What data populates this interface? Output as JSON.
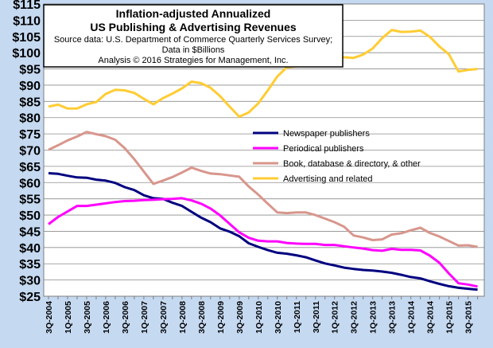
{
  "chart_data": {
    "type": "line",
    "title": "Inflation-adjusted Annualized",
    "title_line2": "US Publishing & Advertising Revenues",
    "subtitle_line1": "Source data: U.S. Department of Commerce Quarterly Services Survey;",
    "subtitle_line2": "Data in $Billions",
    "subtitle_line3": "Analysis © 2016 Strategies for Management, Inc.",
    "xlabel": "",
    "ylabel": "",
    "ylim": [
      25,
      115
    ],
    "ytick_step": 5,
    "y_tick_prefix": "$",
    "grid": true,
    "legend_position": "center-right",
    "plot_background": "#ffffff",
    "page_background": "#c5d9f1",
    "x": [
      "3Q-2004",
      "4Q-2004",
      "1Q-2005",
      "2Q-2005",
      "3Q-2005",
      "4Q-2005",
      "1Q-2006",
      "2Q-2006",
      "3Q-2006",
      "4Q-2006",
      "1Q-2007",
      "2Q-2007",
      "3Q-2007",
      "4Q-2007",
      "1Q-2008",
      "2Q-2008",
      "3Q-2008",
      "4Q-2008",
      "1Q-2009",
      "2Q-2009",
      "3Q-2009",
      "4Q-2009",
      "1Q-2010",
      "2Q-2010",
      "3Q-2010",
      "4Q-2010",
      "1Q-2011",
      "2Q-2011",
      "3Q-2011",
      "4Q-2011",
      "1Q-2012",
      "2Q-2012",
      "3Q-2012",
      "4Q-2012",
      "1Q-2013",
      "2Q-2013",
      "3Q-2013",
      "4Q-2013",
      "1Q-2014",
      "2Q-2014",
      "3Q-2014",
      "4Q-2014",
      "1Q-2015",
      "2Q-2015",
      "3Q-2015",
      "4Q-2015"
    ],
    "x_tick_labels": [
      "3Q-2004",
      "1Q-2005",
      "3Q-2005",
      "1Q-2006",
      "3Q-2006",
      "1Q-2007",
      "3Q-2007",
      "1Q-2008",
      "3Q-2008",
      "1Q-2009",
      "3Q-2009",
      "1Q-2010",
      "3Q-2010",
      "1Q-2011",
      "3Q-2011",
      "1Q-2012",
      "3Q-2012",
      "1Q-2013",
      "3Q-2013",
      "1Q-2014",
      "3Q-2014",
      "1Q-2015",
      "3Q-2015"
    ],
    "series": [
      {
        "name": "Newspaper publishers",
        "color": "#00007f",
        "values": [
          62.9,
          62.7,
          62.1,
          61.6,
          61.5,
          60.9,
          60.6,
          59.9,
          58.6,
          57.7,
          56.1,
          55.2,
          55.0,
          53.8,
          52.8,
          51.0,
          49.2,
          47.8,
          45.9,
          44.9,
          43.5,
          41.3,
          40.2,
          39.2,
          38.4,
          38.1,
          37.6,
          37.0,
          36.0,
          35.1,
          34.5,
          33.8,
          33.4,
          33.1,
          32.9,
          32.6,
          32.2,
          31.6,
          30.9,
          30.5,
          29.6,
          28.8,
          28.1,
          27.6,
          27.3,
          27.0
        ]
      },
      {
        "name": "Periodical publishers",
        "color": "#ff00ff",
        "values": [
          47.2,
          49.4,
          51.1,
          52.8,
          52.8,
          53.2,
          53.6,
          54.0,
          54.3,
          54.4,
          54.6,
          54.7,
          54.9,
          55.0,
          55.2,
          54.5,
          53.5,
          52.0,
          49.9,
          47.3,
          44.7,
          43.0,
          42.1,
          41.9,
          41.9,
          41.4,
          41.2,
          41.1,
          41.1,
          40.8,
          40.8,
          40.4,
          40.0,
          39.7,
          39.2,
          39.0,
          39.6,
          39.3,
          39.3,
          39.1,
          37.5,
          35.3,
          32.0,
          29.0,
          28.6,
          28.0
        ]
      },
      {
        "name": "Book, database & directory, & other",
        "color": "#d8968c",
        "values": [
          70.1,
          71.5,
          73.0,
          74.2,
          75.6,
          74.9,
          74.3,
          73.2,
          70.6,
          67.2,
          63.4,
          59.6,
          60.6,
          61.7,
          63.1,
          64.6,
          63.6,
          62.8,
          62.6,
          62.2,
          61.8,
          58.8,
          56.3,
          53.5,
          50.8,
          50.6,
          50.8,
          50.8,
          50.0,
          48.9,
          47.8,
          46.4,
          43.7,
          43.1,
          42.3,
          42.5,
          44.0,
          44.4,
          45.3,
          46.1,
          44.5,
          43.4,
          42.0,
          40.6,
          40.7,
          40.2
        ]
      },
      {
        "name": "Advertising and related",
        "color": "#ffcc33",
        "values": [
          83.4,
          84.0,
          82.8,
          82.8,
          84.1,
          84.8,
          87.3,
          88.6,
          88.4,
          87.6,
          85.8,
          84.1,
          86.0,
          87.4,
          89.0,
          91.1,
          90.6,
          89.2,
          86.6,
          83.4,
          80.3,
          81.6,
          84.4,
          88.4,
          92.7,
          95.5,
          95.8,
          96.2,
          96.8,
          97.3,
          98.3,
          98.6,
          98.4,
          99.4,
          101.3,
          104.5,
          107.0,
          106.4,
          106.5,
          106.8,
          104.9,
          101.9,
          99.5,
          94.2,
          94.7,
          95.0
        ]
      }
    ]
  }
}
